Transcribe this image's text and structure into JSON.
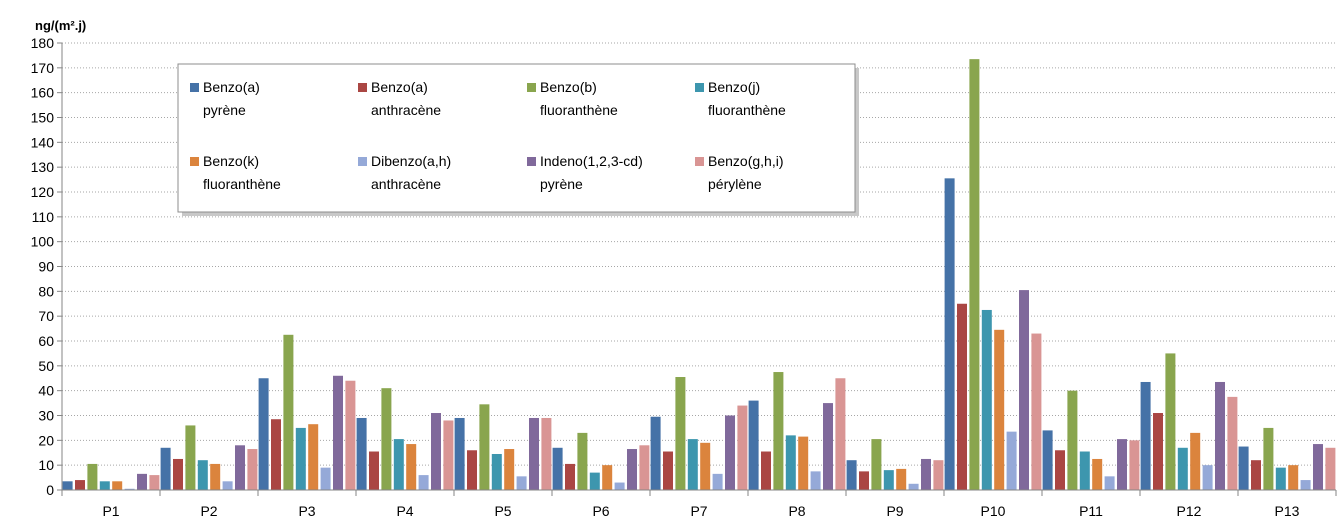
{
  "chart_data": {
    "type": "bar",
    "ylabel": "ng/(m².j)",
    "ylim": [
      0,
      180
    ],
    "ytick_step": 10,
    "grid": "horizontal dotted",
    "legend_position": "top-left inside",
    "categories": [
      "P1",
      "P2",
      "P3",
      "P4",
      "P5",
      "P6",
      "P7",
      "P8",
      "P9",
      "P10",
      "P11",
      "P12",
      "P13"
    ],
    "series": [
      {
        "name": "Benzo(a) pyrène",
        "name_lines": [
          "Benzo(a)",
          "pyrène"
        ],
        "color": "#4572A7",
        "values": [
          3.5,
          17,
          45,
          29,
          29,
          17,
          29.5,
          36,
          12,
          125.5,
          24,
          43.5,
          17.5
        ]
      },
      {
        "name": "Benzo(a) anthracène",
        "name_lines": [
          "Benzo(a)",
          "anthracène"
        ],
        "color": "#AA4643",
        "values": [
          4,
          12.5,
          28.5,
          15.5,
          16,
          10.5,
          15.5,
          15.5,
          7.5,
          75,
          16,
          31,
          12
        ]
      },
      {
        "name": "Benzo(b) fluoranthène",
        "name_lines": [
          "Benzo(b)",
          "fluoranthène"
        ],
        "color": "#89A54E",
        "values": [
          10.5,
          26,
          62.5,
          41,
          34.5,
          23,
          45.5,
          47.5,
          20.5,
          173.5,
          40,
          55,
          25
        ]
      },
      {
        "name": "Benzo(j) fluoranthène",
        "name_lines": [
          "Benzo(j)",
          "fluoranthène"
        ],
        "color": "#3D96AE",
        "values": [
          3.5,
          12,
          25,
          20.5,
          14.5,
          7,
          20.5,
          22,
          8,
          72.5,
          15.5,
          17,
          9
        ]
      },
      {
        "name": "Benzo(k) fluoranthène",
        "name_lines": [
          "Benzo(k)",
          "fluoranthène"
        ],
        "color": "#DB843D",
        "values": [
          3.5,
          10.5,
          26.5,
          18.5,
          16.5,
          10,
          19,
          21.5,
          8.5,
          64.5,
          12.5,
          23,
          10
        ]
      },
      {
        "name": "Dibenzo(a,h) anthracène",
        "name_lines": [
          "Dibenzo(a,h)",
          "anthracène"
        ],
        "color": "#95A9D8",
        "values": [
          0.5,
          3.5,
          9,
          6,
          5.5,
          3,
          6.5,
          7.5,
          2.5,
          23.5,
          5.5,
          10,
          4
        ]
      },
      {
        "name": "Indeno(1,2,3-cd) pyrène",
        "name_lines": [
          "Indeno(1,2,3-cd)",
          "pyrène"
        ],
        "color": "#80699B",
        "values": [
          6.5,
          18,
          46,
          31,
          29,
          16.5,
          30,
          35,
          12.5,
          80.5,
          20.5,
          43.5,
          18.5
        ]
      },
      {
        "name": "Benzo(g,h,i) pérylène",
        "name_lines": [
          "Benzo(g,h,i)",
          "pérylène"
        ],
        "color": "#D99594",
        "values": [
          6,
          16.5,
          44,
          28,
          29,
          18,
          34,
          45,
          12,
          63,
          20,
          37.5,
          17
        ]
      }
    ]
  }
}
